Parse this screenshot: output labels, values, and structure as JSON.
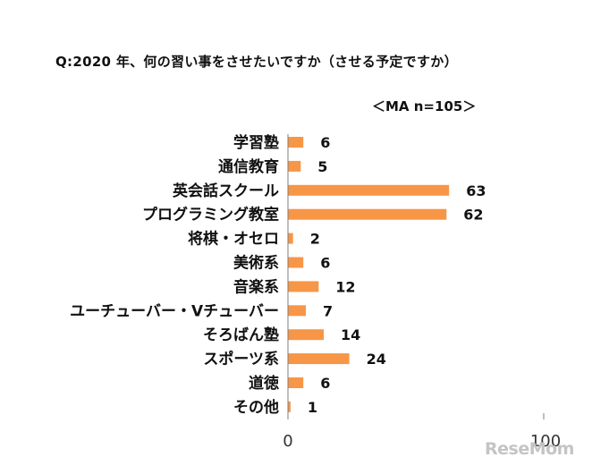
{
  "chart_data": {
    "type": "bar",
    "orientation": "horizontal",
    "title": "Q:2020 年、何の習い事をさせたいですか（させる予定ですか）",
    "subtitle": "＜MA n=105＞",
    "categories": [
      "学習塾",
      "通信教育",
      "英会話スクール",
      "プログラミング教室",
      "将棋・オセロ",
      "美術系",
      "音楽系",
      "ユーチューバー・Vチューバー",
      "そろばん塾",
      "スポーツ系",
      "道徳",
      "その他"
    ],
    "values": [
      6,
      5,
      63,
      62,
      2,
      6,
      12,
      7,
      14,
      24,
      6,
      1
    ],
    "xlim": [
      0,
      100
    ],
    "xticks": [
      "0",
      "100"
    ],
    "bar_color": "#f79646",
    "grid": false
  },
  "watermark": "ReseMom"
}
